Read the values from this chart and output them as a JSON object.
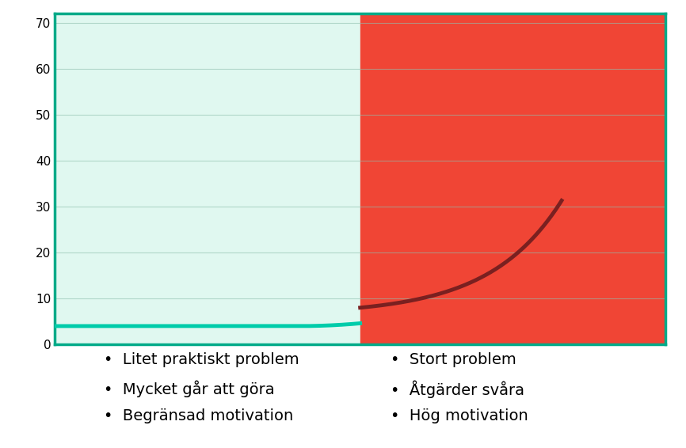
{
  "xlim": [
    0,
    10
  ],
  "ylim": [
    0,
    72
  ],
  "yticks": [
    0,
    10,
    20,
    30,
    40,
    50,
    60,
    70
  ],
  "bg_left_color": "#e0f8f0",
  "bg_right_color": "#f04535",
  "border_color": "#00aa88",
  "split_x": 5.0,
  "curve_color_left": "#00ccaa",
  "curve_color_right": "#7a2020",
  "left_labels": [
    "Litet praktiskt problem",
    "Mycket går att göra",
    "Begränsad motivation"
  ],
  "right_labels": [
    "Stort problem",
    "Åtgärder svåra",
    "Hög motivation"
  ],
  "label_fontsize": 14,
  "grid_color": "#90c0b0",
  "grid_alpha": 0.6,
  "figsize": [
    8.66,
    5.66
  ],
  "dpi": 100,
  "curve_exp_a": 1.5,
  "curve_exp_b": 0.85,
  "curve_exp_c": 6.5,
  "curve_right_end_x": 8.3
}
